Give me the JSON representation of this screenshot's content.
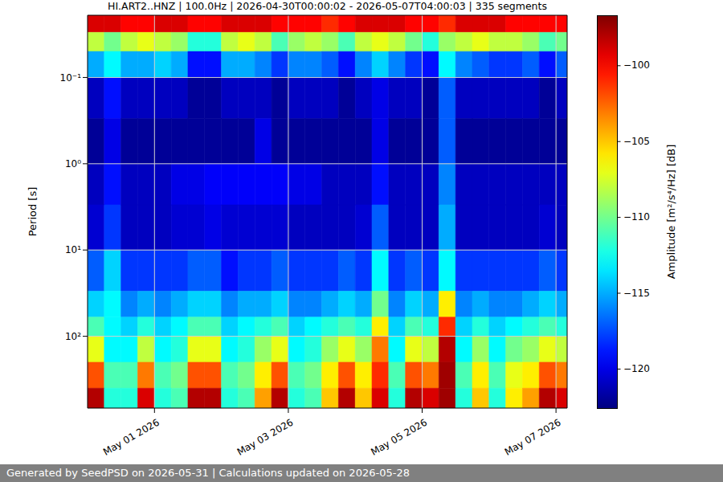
{
  "chart_data": {
    "type": "heatmap",
    "title": "HI.ART2..HNZ | 100.0Hz | 2026-04-30T00:00:02 - 2026-05-07T04:00:03 | 335 segments",
    "y_label": "Period [s]",
    "footer": "Generated by SeedPSD on 2026-05-31 | Calculations updated on 2026-05-28",
    "log": "y",
    "grid": true,
    "xlim": [
      0,
      172
    ],
    "xticks": [
      {
        "value": 24,
        "label": "May 01 2026"
      },
      {
        "value": 72,
        "label": "May 03 2026"
      },
      {
        "value": 120,
        "label": "May 05 2026"
      },
      {
        "value": 168,
        "label": "May 07 2026"
      }
    ],
    "ylim": [
      0.019,
      680
    ],
    "yticks": [
      {
        "value": 0.1,
        "label": "10⁻¹"
      },
      {
        "value": 1,
        "label": "10⁰"
      },
      {
        "value": 10,
        "label": "10¹"
      },
      {
        "value": 100,
        "label": "10²"
      }
    ],
    "cells": {
      "x_edges": [
        0,
        6,
        12,
        18,
        24,
        30,
        36,
        42,
        48,
        54,
        60,
        66,
        72,
        78,
        84,
        90,
        96,
        102,
        108,
        114,
        120,
        126,
        132,
        138,
        144,
        150,
        156,
        162,
        168,
        172
      ],
      "period_edges": [
        0.019,
        0.03,
        0.05,
        0.1,
        0.3,
        1,
        3,
        10,
        30,
        60,
        100,
        200,
        400,
        680
      ],
      "values": [
        [
          -99,
          -99,
          -100,
          -100,
          -99,
          -99,
          -100,
          -100,
          -99,
          -99,
          -99,
          -100,
          -100,
          -100,
          -101,
          -100,
          -99,
          -99,
          -99,
          -100,
          -100,
          -101,
          -99,
          -99,
          -99,
          -100,
          -100,
          -100,
          -100
        ],
        [
          -108,
          -110,
          -108,
          -107,
          -108,
          -109,
          -112,
          -112,
          -108,
          -107,
          -108,
          -111,
          -109,
          -108,
          -109,
          -111,
          -108,
          -107,
          -108,
          -110,
          -112,
          -109,
          -108,
          -107,
          -108,
          -108,
          -109,
          -111,
          -110
        ],
        [
          -115,
          -113,
          -115,
          -115,
          -114,
          -115,
          -119,
          -119,
          -115,
          -115,
          -116,
          -118,
          -116,
          -116,
          -117,
          -119,
          -116,
          -114,
          -116,
          -118,
          -119,
          -113,
          -116,
          -117,
          -118,
          -118,
          -117,
          -119,
          -117
        ],
        [
          -121,
          -119,
          -121,
          -121,
          -121,
          -121,
          -122,
          -122,
          -121,
          -121,
          -121,
          -122,
          -121,
          -121,
          -121,
          -122,
          -121,
          -120,
          -121,
          -121,
          -122,
          -117,
          -121,
          -121,
          -121,
          -121,
          -121,
          -122,
          -121
        ],
        [
          -122,
          -120,
          -122,
          -122,
          -122,
          -122,
          -122,
          -122,
          -122,
          -122,
          -120,
          -122,
          -122,
          -122,
          -122,
          -122,
          -122,
          -120,
          -122,
          -122,
          -122,
          -117,
          -122,
          -122,
          -122,
          -122,
          -122,
          -122,
          -122
        ],
        [
          -121,
          -119,
          -121,
          -121,
          -121,
          -120,
          -120,
          -119.5,
          -119.5,
          -119.5,
          -119.5,
          -119.5,
          -120,
          -120,
          -121,
          -121,
          -121,
          -119,
          -121,
          -121,
          -121,
          -116,
          -121,
          -121,
          -121,
          -121,
          -121,
          -121,
          -121
        ],
        [
          -120.5,
          -118,
          -121,
          -121,
          -121,
          -120.5,
          -120.5,
          -120,
          -120.5,
          -120.5,
          -120.5,
          -120.5,
          -121,
          -121,
          -121,
          -121,
          -120.5,
          -117,
          -121,
          -121,
          -121,
          -115,
          -121,
          -121,
          -121,
          -121,
          -121,
          -120.5,
          -121
        ],
        [
          -117,
          -114,
          -118,
          -118,
          -118,
          -118,
          -117,
          -117,
          -119,
          -118,
          -118,
          -117,
          -118,
          -118,
          -118,
          -117,
          -118,
          -113,
          -118,
          -117,
          -118,
          -113,
          -118,
          -118,
          -118,
          -118,
          -118,
          -117,
          -118
        ],
        [
          -114,
          -113,
          -116,
          -115,
          -116,
          -115,
          -114,
          -114,
          -116,
          -115,
          -115,
          -114,
          -116,
          -116,
          -115,
          -114,
          -115,
          -110,
          -116,
          -114,
          -115,
          -106,
          -116,
          -115,
          -116,
          -116,
          -115,
          -114,
          -115
        ],
        [
          -111,
          -113,
          -114,
          -112,
          -114,
          -113,
          -111,
          -111,
          -114,
          -113,
          -112,
          -111,
          -114,
          -113,
          -112,
          -111,
          -112,
          -106,
          -114,
          -111,
          -112,
          -101,
          -114,
          -112,
          -114,
          -113,
          -112,
          -111,
          -112
        ],
        [
          -107,
          -113,
          -113,
          -108,
          -113,
          -112,
          -107,
          -107,
          -113,
          -112,
          -109,
          -107,
          -113,
          -112,
          -109,
          -107,
          -109,
          -103,
          -113,
          -107,
          -108,
          -98,
          -113,
          -109,
          -113,
          -110,
          -109,
          -107,
          -108
        ],
        [
          -102,
          -111,
          -111,
          -103,
          -111,
          -110,
          -102,
          -102,
          -111,
          -110,
          -106,
          -102,
          -111,
          -110,
          -106,
          -102,
          -106,
          -101,
          -111,
          -102,
          -103,
          -97.5,
          -111,
          -106,
          -111,
          -107,
          -106,
          -102,
          -103
        ],
        [
          -98,
          -112,
          -112,
          -99,
          -112,
          -111,
          -98,
          -98,
          -112,
          -111,
          -104,
          -98,
          -112,
          -111,
          -105,
          -98,
          -105,
          -99,
          -112,
          -98,
          -99,
          -97.5,
          -112,
          -105,
          -112,
          -106,
          -104,
          -98,
          -99
        ]
      ]
    },
    "colorbar": {
      "label": "Amplitude [m²/s⁴/Hz] [dB]",
      "range": [
        -122.6,
        -96.7
      ],
      "ticks": [
        {
          "value": -100,
          "label": "−100"
        },
        {
          "value": -105,
          "label": "−105"
        },
        {
          "value": -110,
          "label": "−110"
        },
        {
          "value": -115,
          "label": "−115"
        },
        {
          "value": -120,
          "label": "−120"
        }
      ]
    }
  }
}
